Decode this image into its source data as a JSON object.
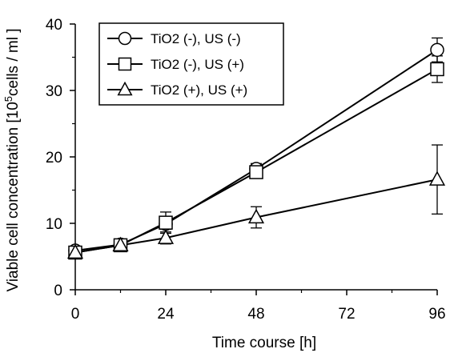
{
  "chart_data": {
    "type": "line",
    "title": "",
    "xlabel": "Time course [h]",
    "ylabel_main": "Viable cell concentration [10",
    "ylabel_sup": "5",
    "ylabel_rest": "cells / ml ]",
    "x_ticks": [
      0,
      24,
      48,
      72,
      96
    ],
    "y_ticks": [
      0,
      10,
      20,
      30,
      40
    ],
    "xlim": [
      0,
      96
    ],
    "ylim": [
      0,
      40
    ],
    "grid": false,
    "legend_position": "top-left",
    "series": [
      {
        "name": "TiO2 (-), US (-)",
        "marker": "circle",
        "x": [
          0,
          12,
          24,
          48,
          96
        ],
        "y": [
          5.9,
          6.8,
          9.9,
          18.2,
          36.1
        ],
        "err": [
          0.3,
          0.4,
          0.8,
          0.8,
          1.8
        ]
      },
      {
        "name": "TiO2 (-), US (+)",
        "marker": "square",
        "x": [
          0,
          12,
          24,
          48,
          96
        ],
        "y": [
          5.6,
          6.7,
          10.1,
          17.7,
          33.2
        ],
        "err": [
          0.3,
          0.4,
          1.6,
          0.9,
          2.0
        ]
      },
      {
        "name": "TiO2 (+), US (+)",
        "marker": "triangle",
        "x": [
          0,
          12,
          24,
          48,
          96
        ],
        "y": [
          5.6,
          6.7,
          7.8,
          10.9,
          16.6
        ],
        "err": [
          0.3,
          0.3,
          0.9,
          1.6,
          5.2
        ]
      }
    ]
  }
}
